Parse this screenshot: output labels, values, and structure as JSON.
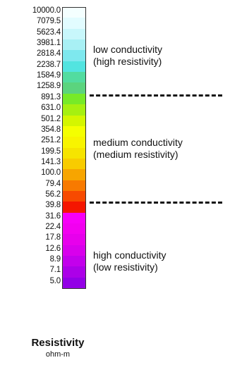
{
  "legend": {
    "title": "Resistivity",
    "unit": "ohm-m",
    "ticks": [
      "10000.0",
      "7079.5",
      "5623.4",
      "3981.1",
      "2818.4",
      "2238.7",
      "1584.9",
      "1258.9",
      "891.3",
      "631.0",
      "501.2",
      "354.8",
      "251.2",
      "199.5",
      "141.3",
      "100.0",
      "79.4",
      "56.2",
      "39.8",
      "31.6",
      "22.4",
      "17.8",
      "12.6",
      "8.9",
      "7.1",
      "5.0"
    ],
    "colors": [
      "#f4ffff",
      "#e2fcff",
      "#c8f7fb",
      "#a8f0f4",
      "#7ee8ee",
      "#52e4e0",
      "#52dca0",
      "#5bd47e",
      "#77ea28",
      "#a6f010",
      "#d4f600",
      "#f4ff00",
      "#f8f400",
      "#f6e400",
      "#f8cc00",
      "#f7a500",
      "#f87a00",
      "#f74a00",
      "#f51600",
      "#f700f7",
      "#f200f0",
      "#e700ec",
      "#d800ec",
      "#c300ec",
      "#ac00e8",
      "#9300e6"
    ],
    "zones": [
      {
        "label": "low conductivity\n(high resistivity)"
      },
      {
        "label": "medium conductivity\n(medium resistivity)"
      },
      {
        "label": "high conductivity\n(low resistivity)"
      }
    ]
  }
}
